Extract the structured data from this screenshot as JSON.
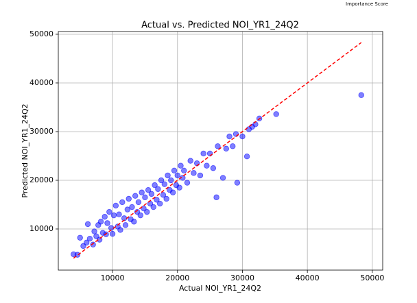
{
  "overlay_text": "Importance Score",
  "chart_data": {
    "type": "scatter",
    "title": "Actual vs. Predicted NOI_YR1_24Q2",
    "x_label": "Actual NOI_YR1_24Q2",
    "y_label": "Predicted NOI_YR1_24Q2",
    "xlim": [
      1650,
      51600
    ],
    "ylim": [
      1550,
      50560
    ],
    "xticks": [
      10000,
      20000,
      30000,
      40000,
      50000
    ],
    "yticks": [
      10000,
      20000,
      30000,
      40000,
      50000
    ],
    "grid": true,
    "color": "#0000ff",
    "x": [
      4000,
      4600,
      5000,
      5500,
      6000,
      6200,
      6500,
      7000,
      7200,
      7500,
      7800,
      8000,
      8200,
      8500,
      8800,
      9000,
      9200,
      9500,
      9800,
      10000,
      10200,
      10500,
      10800,
      11000,
      11200,
      11500,
      11800,
      12000,
      12300,
      12500,
      12800,
      13000,
      13300,
      13500,
      13800,
      14000,
      14300,
      14500,
      14800,
      15000,
      15300,
      15500,
      15800,
      16000,
      16300,
      16500,
      16800,
      17000,
      17300,
      17500,
      17800,
      18000,
      18300,
      18500,
      18800,
      19000,
      19300,
      19500,
      19800,
      20000,
      20300,
      20500,
      20800,
      21000,
      21500,
      22000,
      22500,
      23000,
      23500,
      24000,
      24500,
      25000,
      25500,
      26000,
      26200,
      27000,
      27500,
      28000,
      28500,
      29000,
      29200,
      30000,
      30700,
      31000,
      31500,
      32000,
      32600,
      35200,
      48300
    ],
    "y": [
      4800,
      4700,
      8200,
      6500,
      7200,
      11000,
      8000,
      6800,
      9500,
      8500,
      10800,
      7800,
      11500,
      9200,
      12500,
      8900,
      11200,
      13500,
      10200,
      9000,
      12800,
      14800,
      10500,
      13000,
      9800,
      15500,
      12200,
      10800,
      14000,
      16200,
      12000,
      14500,
      11500,
      16800,
      13500,
      15500,
      12800,
      17500,
      14200,
      16500,
      13500,
      18000,
      15200,
      17200,
      14500,
      19000,
      16000,
      18200,
      15200,
      20000,
      17000,
      19200,
      16200,
      21000,
      18000,
      20000,
      17500,
      22000,
      19000,
      21000,
      18500,
      23000,
      20500,
      22000,
      19500,
      24000,
      21500,
      23500,
      21000,
      25500,
      23000,
      25500,
      22500,
      16500,
      27000,
      20500,
      26500,
      29000,
      27000,
      29500,
      19500,
      29000,
      24900,
      30500,
      31000,
      31500,
      32700,
      33600,
      37500
    ],
    "diagonal": {
      "x": [
        4000,
        48300
      ],
      "y": [
        4000,
        48300
      ],
      "color": "#ff0000"
    }
  }
}
